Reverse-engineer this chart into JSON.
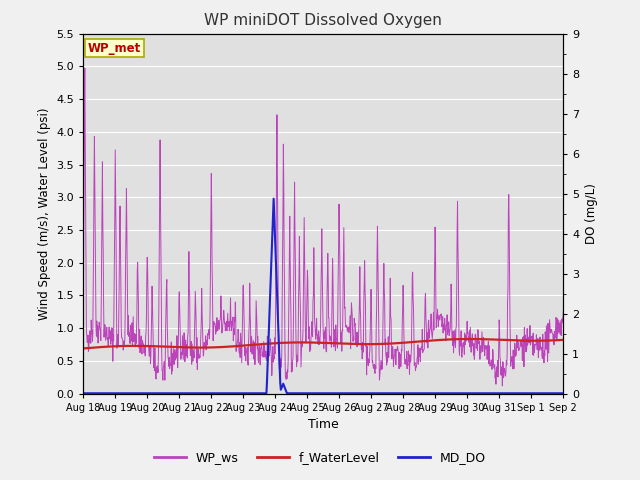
{
  "title": "WP miniDOT Dissolved Oxygen",
  "xlabel": "Time",
  "ylabel_left": "Wind Speed (m/s), Water Level (psi)",
  "ylabel_right": "DO (mg/L)",
  "ylim_left": [
    0.0,
    5.5
  ],
  "ylim_right": [
    0.0,
    9.0
  ],
  "yticks_left": [
    0.0,
    0.5,
    1.0,
    1.5,
    2.0,
    2.5,
    3.0,
    3.5,
    4.0,
    4.5,
    5.0,
    5.5
  ],
  "yticks_right": [
    0.0,
    1.0,
    2.0,
    3.0,
    4.0,
    5.0,
    6.0,
    7.0,
    8.0,
    9.0
  ],
  "xtick_labels": [
    "Aug 18",
    "Aug 19",
    "Aug 20",
    "Aug 21",
    "Aug 22",
    "Aug 23",
    "Aug 24",
    "Aug 25",
    "Aug 26",
    "Aug 27",
    "Aug 28",
    "Aug 29",
    "Aug 30",
    "Aug 31",
    "Sep 1",
    "Sep 2"
  ],
  "wp_ws_color": "#BB44BB",
  "f_waterlevel_color": "#CC2222",
  "md_do_color": "#2222CC",
  "legend_label_ws": "WP_ws",
  "legend_label_wl": "f_WaterLevel",
  "legend_label_do": "MD_DO",
  "annotation_text": "WP_met",
  "annotation_color": "#BB0000",
  "annotation_bg": "#FFFFCC",
  "annotation_border": "#AAAA00",
  "plot_bg_color": "#E0E0E0",
  "fig_bg_color": "#F0F0F0",
  "grid_color": "#FFFFFF"
}
